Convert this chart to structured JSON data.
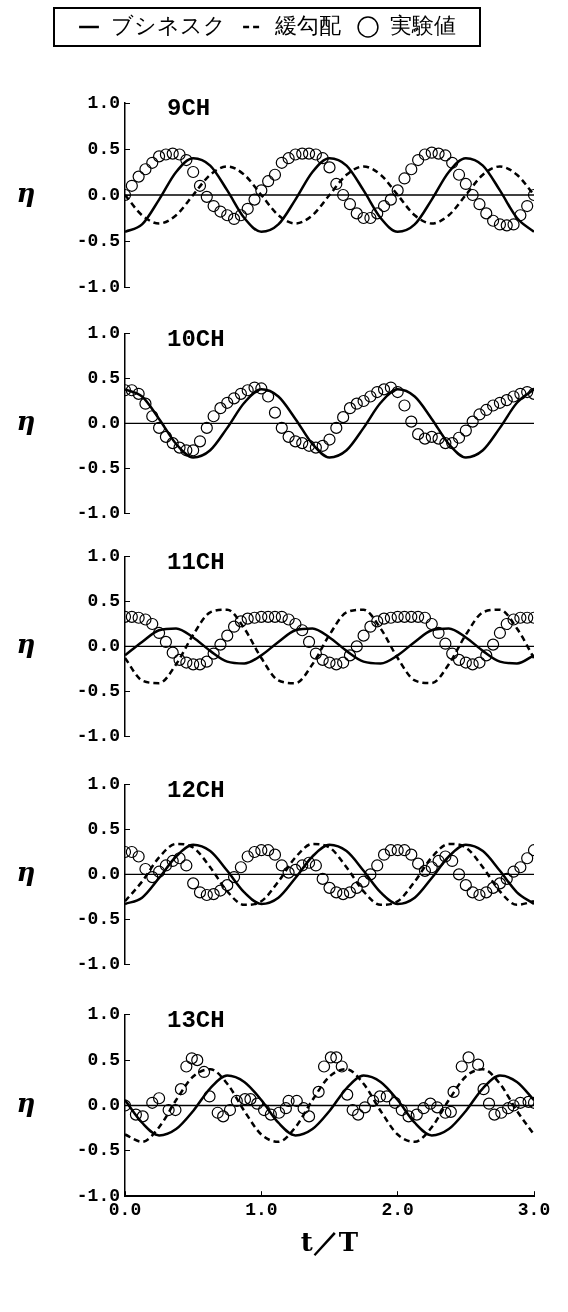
{
  "chart_data": [
    {
      "type": "line",
      "title": "9CH",
      "ylabel": "η",
      "legend": "top",
      "tick_labels": "y",
      "xlim": [
        0,
        3
      ],
      "ylim": [
        -1,
        1
      ],
      "yticks": [
        {
          "value": 1,
          "label": "1.0"
        },
        {
          "value": 0.5,
          "label": "0.5"
        },
        {
          "value": 0,
          "label": "0.0"
        },
        {
          "value": -0.5,
          "label": "-0.5"
        },
        {
          "value": -1,
          "label": "-1.0"
        }
      ],
      "ref_lines": [
        {
          "axis": "y",
          "value": 0,
          "label": null,
          "color": "#000000"
        }
      ],
      "x": [
        0,
        0.05,
        0.1,
        0.15,
        0.2,
        0.25,
        0.3,
        0.35,
        0.4,
        0.45,
        0.5,
        0.55,
        0.6,
        0.65,
        0.7,
        0.75,
        0.8,
        0.85,
        0.9,
        0.95,
        1,
        1.05,
        1.1,
        1.15,
        1.2,
        1.25,
        1.3,
        1.35,
        1.4,
        1.45,
        1.5,
        1.55,
        1.6,
        1.65,
        1.7,
        1.75,
        1.8,
        1.85,
        1.9,
        1.95,
        2,
        2.05,
        2.1,
        2.15,
        2.2,
        2.25,
        2.3,
        2.35,
        2.4,
        2.45,
        2.5,
        2.55,
        2.6,
        2.65,
        2.7,
        2.75,
        2.8,
        2.85,
        2.9,
        2.95,
        3
      ],
      "series": [
        {
          "type": "line",
          "name": "ブシネスク",
          "color": "#000000",
          "line_style": "solid",
          "marker": "none",
          "x": [
            0,
            0.125,
            0.25,
            0.375,
            0.5,
            0.625,
            0.75,
            0.875,
            1,
            1.125,
            1.25,
            1.375,
            1.5,
            1.625,
            1.75,
            1.875,
            2,
            2.125,
            2.25,
            2.375,
            2.5,
            2.625,
            2.75,
            2.875,
            3
          ],
          "values": [
            -0.4,
            -0.32,
            -0.05,
            0.25,
            0.4,
            0.32,
            0.05,
            -0.25,
            -0.4,
            -0.32,
            -0.05,
            0.25,
            0.4,
            0.32,
            0.05,
            -0.25,
            -0.4,
            -0.32,
            -0.05,
            0.25,
            0.4,
            0.32,
            0.05,
            -0.25,
            -0.4
          ]
        },
        {
          "type": "line",
          "name": "緩勾配",
          "color": "#000000",
          "line_style": "dashed",
          "marker": "none",
          "x": [
            0,
            0.125,
            0.25,
            0.375,
            0.5,
            0.625,
            0.75,
            0.875,
            1,
            1.125,
            1.25,
            1.375,
            1.5,
            1.625,
            1.75,
            1.875,
            2,
            2.125,
            2.25,
            2.375,
            2.5,
            2.625,
            2.75,
            2.875,
            3
          ],
          "values": [
            0,
            -0.22,
            -0.31,
            -0.22,
            0,
            0.22,
            0.31,
            0.22,
            0,
            -0.22,
            -0.31,
            -0.22,
            0,
            0.22,
            0.31,
            0.22,
            0,
            -0.22,
            -0.31,
            -0.22,
            0,
            0.22,
            0.31,
            0.22,
            0
          ]
        },
        {
          "type": "scatter",
          "name": "実験値",
          "color": "#000000",
          "marker": "circle",
          "values": [
            0,
            0.1,
            0.2,
            0.28,
            0.35,
            0.42,
            0.44,
            0.45,
            0.44,
            0.38,
            0.25,
            0.1,
            -0.02,
            -0.12,
            -0.18,
            -0.22,
            -0.26,
            -0.22,
            -0.15,
            -0.05,
            0.05,
            0.15,
            0.22,
            0.35,
            0.4,
            0.44,
            0.45,
            0.45,
            0.44,
            0.4,
            0.3,
            0.12,
            0,
            -0.1,
            -0.2,
            -0.25,
            -0.25,
            -0.2,
            -0.12,
            -0.05,
            0.05,
            0.18,
            0.28,
            0.38,
            0.44,
            0.46,
            0.45,
            0.43,
            0.35,
            0.22,
            0.12,
            0,
            -0.1,
            -0.2,
            -0.28,
            -0.32,
            -0.33,
            -0.32,
            -0.22,
            -0.12,
            0
          ]
        }
      ]
    },
    {
      "type": "line",
      "title": "10CH",
      "ylabel": "η",
      "tick_labels": "y",
      "xlim": [
        0,
        3
      ],
      "ylim": [
        -1,
        1
      ],
      "yticks": [
        {
          "value": 1,
          "label": "1.0"
        },
        {
          "value": 0.5,
          "label": "0.5"
        },
        {
          "value": 0,
          "label": "0.0"
        },
        {
          "value": -0.5,
          "label": "-0.5"
        },
        {
          "value": -1,
          "label": "-1.0"
        }
      ],
      "ref_lines": [
        {
          "axis": "y",
          "value": 0,
          "label": null,
          "color": "#000000"
        }
      ],
      "x": [
        0,
        0.05,
        0.1,
        0.15,
        0.2,
        0.25,
        0.3,
        0.35,
        0.4,
        0.45,
        0.5,
        0.55,
        0.6,
        0.65,
        0.7,
        0.75,
        0.8,
        0.85,
        0.9,
        0.95,
        1,
        1.05,
        1.1,
        1.15,
        1.2,
        1.25,
        1.3,
        1.35,
        1.4,
        1.45,
        1.5,
        1.55,
        1.6,
        1.65,
        1.7,
        1.75,
        1.8,
        1.85,
        1.9,
        1.95,
        2,
        2.05,
        2.1,
        2.15,
        2.2,
        2.25,
        2.3,
        2.35,
        2.4,
        2.45,
        2.5,
        2.55,
        2.6,
        2.65,
        2.7,
        2.75,
        2.8,
        2.85,
        2.9,
        2.95,
        3
      ],
      "series": [
        {
          "type": "line",
          "color": "#000000",
          "line_style": "solid",
          "marker": "none",
          "x": [
            0,
            0.125,
            0.25,
            0.375,
            0.5,
            0.625,
            0.75,
            0.875,
            1,
            1.125,
            1.25,
            1.375,
            1.5,
            1.625,
            1.75,
            1.875,
            2,
            2.125,
            2.25,
            2.375,
            2.5,
            2.625,
            2.75,
            2.875,
            3
          ],
          "values": [
            0.38,
            0.3,
            0.05,
            -0.23,
            -0.38,
            -0.3,
            -0.05,
            0.23,
            0.38,
            0.3,
            0.05,
            -0.23,
            -0.38,
            -0.3,
            -0.05,
            0.23,
            0.38,
            0.3,
            0.05,
            -0.23,
            -0.38,
            -0.3,
            -0.05,
            0.23,
            0.38
          ]
        },
        {
          "type": "scatter",
          "color": "#000000",
          "marker": "circle",
          "values": [
            0.37,
            0.37,
            0.33,
            0.22,
            0.08,
            -0.05,
            -0.15,
            -0.22,
            -0.27,
            -0.3,
            -0.3,
            -0.2,
            -0.05,
            0.08,
            0.17,
            0.23,
            0.28,
            0.33,
            0.37,
            0.4,
            0.39,
            0.3,
            0.12,
            -0.05,
            -0.15,
            -0.2,
            -0.22,
            -0.25,
            -0.27,
            -0.25,
            -0.18,
            -0.05,
            0.07,
            0.17,
            0.22,
            0.25,
            0.3,
            0.35,
            0.38,
            0.4,
            0.35,
            0.2,
            0.02,
            -0.12,
            -0.17,
            -0.15,
            -0.17,
            -0.22,
            -0.22,
            -0.16,
            -0.08,
            0.02,
            0.1,
            0.15,
            0.2,
            0.23,
            0.26,
            0.3,
            0.33,
            0.35,
            0.33
          ]
        }
      ]
    },
    {
      "type": "line",
      "title": "11CH",
      "ylabel": "η",
      "tick_labels": "y",
      "xlim": [
        0,
        3
      ],
      "ylim": [
        -1,
        1
      ],
      "yticks": [
        {
          "value": 1,
          "label": "1.0"
        },
        {
          "value": 0.5,
          "label": "0.5"
        },
        {
          "value": 0,
          "label": "0.0"
        },
        {
          "value": -0.5,
          "label": "-0.5"
        },
        {
          "value": -1,
          "label": "-1.0"
        }
      ],
      "ref_lines": [
        {
          "axis": "y",
          "value": 0,
          "label": null,
          "color": "#000000"
        }
      ],
      "x": [
        0,
        0.05,
        0.1,
        0.15,
        0.2,
        0.25,
        0.3,
        0.35,
        0.4,
        0.45,
        0.5,
        0.55,
        0.6,
        0.65,
        0.7,
        0.75,
        0.8,
        0.85,
        0.9,
        0.95,
        1,
        1.05,
        1.1,
        1.15,
        1.2,
        1.25,
        1.3,
        1.35,
        1.4,
        1.45,
        1.5,
        1.55,
        1.6,
        1.65,
        1.7,
        1.75,
        1.8,
        1.85,
        1.9,
        1.95,
        2,
        2.05,
        2.1,
        2.15,
        2.2,
        2.25,
        2.3,
        2.35,
        2.4,
        2.45,
        2.5,
        2.55,
        2.6,
        2.65,
        2.7,
        2.75,
        2.8,
        2.85,
        2.9,
        2.95,
        3
      ],
      "series": [
        {
          "type": "line",
          "color": "#000000",
          "line_style": "solid",
          "marker": "none",
          "x": [
            0,
            0.125,
            0.25,
            0.375,
            0.5,
            0.625,
            0.75,
            0.875,
            1,
            1.125,
            1.25,
            1.375,
            1.5,
            1.625,
            1.75,
            1.875,
            2,
            2.125,
            2.25,
            2.375,
            2.5,
            2.625,
            2.75,
            2.875,
            3
          ],
          "values": [
            -0.1,
            0.05,
            0.18,
            0.2,
            0.1,
            -0.05,
            -0.17,
            -0.19,
            -0.1,
            0.05,
            0.18,
            0.2,
            0.1,
            -0.05,
            -0.17,
            -0.19,
            -0.1,
            0.05,
            0.18,
            0.2,
            0.1,
            -0.05,
            -0.17,
            -0.19,
            -0.1
          ]
        },
        {
          "type": "line",
          "color": "#000000",
          "line_style": "dashed",
          "marker": "none",
          "x": [
            0,
            0.125,
            0.25,
            0.375,
            0.5,
            0.625,
            0.75,
            0.875,
            1,
            1.125,
            1.25,
            1.375,
            1.5,
            1.625,
            1.75,
            1.875,
            2,
            2.125,
            2.25,
            2.375,
            2.5,
            2.625,
            2.75,
            2.875,
            3
          ],
          "values": [
            -0.13,
            -0.38,
            -0.41,
            -0.2,
            0.13,
            0.38,
            0.41,
            0.2,
            -0.13,
            -0.38,
            -0.41,
            -0.2,
            0.13,
            0.38,
            0.41,
            0.2,
            -0.13,
            -0.38,
            -0.41,
            -0.2,
            0.13,
            0.38,
            0.41,
            0.2,
            -0.13
          ]
        },
        {
          "type": "scatter",
          "color": "#000000",
          "marker": "circle",
          "values": [
            0.33,
            0.33,
            0.32,
            0.3,
            0.25,
            0.15,
            0.05,
            -0.07,
            -0.15,
            -0.18,
            -0.2,
            -0.2,
            -0.17,
            -0.08,
            0.02,
            0.12,
            0.22,
            0.28,
            0.31,
            0.32,
            0.33,
            0.33,
            0.33,
            0.33,
            0.3,
            0.25,
            0.18,
            0.05,
            -0.08,
            -0.15,
            -0.18,
            -0.2,
            -0.18,
            -0.1,
            0,
            0.12,
            0.22,
            0.28,
            0.31,
            0.32,
            0.33,
            0.33,
            0.33,
            0.33,
            0.32,
            0.25,
            0.15,
            0.03,
            -0.08,
            -0.15,
            -0.18,
            -0.2,
            -0.18,
            -0.1,
            0.02,
            0.15,
            0.25,
            0.3,
            0.32,
            0.32,
            0.32
          ]
        }
      ]
    },
    {
      "type": "line",
      "title": "12CH",
      "ylabel": "η",
      "tick_labels": "y",
      "xlim": [
        0,
        3
      ],
      "ylim": [
        -1,
        1
      ],
      "yticks": [
        {
          "value": 1,
          "label": "1.0"
        },
        {
          "value": 0.5,
          "label": "0.5"
        },
        {
          "value": 0,
          "label": "0.0"
        },
        {
          "value": -0.5,
          "label": "-0.5"
        },
        {
          "value": -1,
          "label": "-1.0"
        }
      ],
      "ref_lines": [
        {
          "axis": "y",
          "value": 0,
          "label": null,
          "color": "#000000"
        }
      ],
      "x": [
        0,
        0.05,
        0.1,
        0.15,
        0.2,
        0.25,
        0.3,
        0.35,
        0.4,
        0.45,
        0.5,
        0.55,
        0.6,
        0.65,
        0.7,
        0.75,
        0.8,
        0.85,
        0.9,
        0.95,
        1,
        1.05,
        1.1,
        1.15,
        1.2,
        1.25,
        1.3,
        1.35,
        1.4,
        1.45,
        1.5,
        1.55,
        1.6,
        1.65,
        1.7,
        1.75,
        1.8,
        1.85,
        1.9,
        1.95,
        2,
        2.05,
        2.1,
        2.15,
        2.2,
        2.25,
        2.3,
        2.35,
        2.4,
        2.45,
        2.5,
        2.55,
        2.6,
        2.65,
        2.7,
        2.75,
        2.8,
        2.85,
        2.9,
        2.95,
        3
      ],
      "series": [
        {
          "type": "line",
          "color": "#000000",
          "line_style": "solid",
          "marker": "none",
          "x": [
            0,
            0.125,
            0.25,
            0.375,
            0.5,
            0.625,
            0.75,
            0.875,
            1,
            1.125,
            1.25,
            1.375,
            1.5,
            1.625,
            1.75,
            1.875,
            2,
            2.125,
            2.25,
            2.375,
            2.5,
            2.625,
            2.75,
            2.875,
            3
          ],
          "values": [
            -0.33,
            -0.26,
            -0.04,
            0.2,
            0.33,
            0.26,
            0.04,
            -0.2,
            -0.33,
            -0.26,
            -0.04,
            0.2,
            0.33,
            0.26,
            0.04,
            -0.2,
            -0.33,
            -0.26,
            -0.04,
            0.2,
            0.33,
            0.26,
            0.04,
            -0.2,
            -0.33
          ]
        },
        {
          "type": "line",
          "color": "#000000",
          "line_style": "dashed",
          "marker": "none",
          "x": [
            0,
            0.125,
            0.25,
            0.375,
            0.5,
            0.625,
            0.75,
            0.875,
            1,
            1.125,
            1.25,
            1.375,
            1.5,
            1.625,
            1.75,
            1.875,
            2,
            2.125,
            2.25,
            2.375,
            2.5,
            2.625,
            2.75,
            2.875,
            3
          ],
          "values": [
            -0.3,
            -0.08,
            0.19,
            0.34,
            0.3,
            0.08,
            -0.19,
            -0.34,
            -0.3,
            -0.08,
            0.19,
            0.34,
            0.3,
            0.08,
            -0.19,
            -0.34,
            -0.3,
            -0.08,
            0.19,
            0.34,
            0.3,
            0.08,
            -0.19,
            -0.34,
            -0.3
          ]
        },
        {
          "type": "scatter",
          "color": "#000000",
          "marker": "circle",
          "values": [
            0.25,
            0.25,
            0.2,
            0.06,
            -0.03,
            0.03,
            0.1,
            0.15,
            0.18,
            0.1,
            -0.1,
            -0.2,
            -0.23,
            -0.22,
            -0.18,
            -0.12,
            -0.03,
            0.08,
            0.2,
            0.25,
            0.27,
            0.27,
            0.22,
            0.1,
            0.02,
            0.05,
            0.1,
            0.13,
            0.1,
            -0.05,
            -0.15,
            -0.2,
            -0.22,
            -0.2,
            -0.15,
            -0.08,
            0,
            0.1,
            0.22,
            0.27,
            0.27,
            0.27,
            0.22,
            0.12,
            0.04,
            0.08,
            0.15,
            0.2,
            0.15,
            0,
            -0.12,
            -0.2,
            -0.23,
            -0.2,
            -0.15,
            -0.1,
            -0.05,
            0.03,
            0.08,
            0.18,
            0.27
          ]
        }
      ]
    },
    {
      "type": "line",
      "title": "13CH",
      "ylabel": "η",
      "xlabel": "t／T",
      "xlim": [
        0,
        3
      ],
      "ylim": [
        -1,
        1
      ],
      "xticks": [
        {
          "value": 0,
          "label": "0.0"
        },
        {
          "value": 1,
          "label": "1.0"
        },
        {
          "value": 2,
          "label": "2.0"
        },
        {
          "value": 3,
          "label": "3.0"
        }
      ],
      "yticks": [
        {
          "value": 1,
          "label": "1.0"
        },
        {
          "value": 0.5,
          "label": "0.5"
        },
        {
          "value": 0,
          "label": "0.0"
        },
        {
          "value": -0.5,
          "label": "-0.5"
        },
        {
          "value": -1,
          "label": "-1.0"
        }
      ],
      "ref_lines": [
        {
          "axis": "y",
          "value": 0,
          "label": null,
          "color": "#000000"
        }
      ],
      "series": [
        {
          "type": "line",
          "color": "#000000",
          "line_style": "solid",
          "marker": "none",
          "x": [
            0,
            0.125,
            0.25,
            0.375,
            0.5,
            0.625,
            0.75,
            0.875,
            1,
            1.125,
            1.25,
            1.375,
            1.5,
            1.625,
            1.75,
            1.875,
            2,
            2.125,
            2.25,
            2.375,
            2.5,
            2.625,
            2.75,
            2.875,
            3
          ],
          "values": [
            0.06,
            -0.19,
            -0.33,
            -0.26,
            -0.06,
            0.19,
            0.33,
            0.26,
            0.06,
            -0.19,
            -0.33,
            -0.26,
            -0.06,
            0.19,
            0.33,
            0.26,
            0.06,
            -0.19,
            -0.33,
            -0.26,
            -0.06,
            0.19,
            0.33,
            0.26,
            0.06
          ]
        },
        {
          "type": "line",
          "color": "#000000",
          "line_style": "dashed",
          "marker": "none",
          "x": [
            0,
            0.125,
            0.25,
            0.375,
            0.5,
            0.625,
            0.75,
            0.875,
            1,
            1.125,
            1.25,
            1.375,
            1.5,
            1.625,
            1.75,
            1.875,
            2,
            2.125,
            2.25,
            2.375,
            2.5,
            2.625,
            2.75,
            2.875,
            3
          ],
          "values": [
            -0.32,
            -0.4,
            -0.24,
            0.06,
            0.32,
            0.4,
            0.24,
            -0.06,
            -0.32,
            -0.4,
            -0.24,
            0.06,
            0.32,
            0.4,
            0.24,
            -0.06,
            -0.32,
            -0.4,
            -0.24,
            0.06,
            0.32,
            0.4,
            0.24,
            -0.06,
            -0.32
          ]
        },
        {
          "type": "scatter",
          "color": "#000000",
          "marker": "circle",
          "x": [
            0,
            0.08,
            0.13,
            0.2,
            0.25,
            0.32,
            0.37,
            0.41,
            0.45,
            0.49,
            0.53,
            0.58,
            0.62,
            0.68,
            0.72,
            0.77,
            0.82,
            0.88,
            0.92,
            0.97,
            1.02,
            1.07,
            1.13,
            1.18,
            1.2,
            1.26,
            1.31,
            1.35,
            1.42,
            1.46,
            1.51,
            1.55,
            1.59,
            1.63,
            1.67,
            1.71,
            1.76,
            1.82,
            1.87,
            1.92,
            1.98,
            2.03,
            2.08,
            2.14,
            2.19,
            2.24,
            2.29,
            2.35,
            2.39,
            2.41,
            2.47,
            2.52,
            2.59,
            2.63,
            2.67,
            2.71,
            2.76,
            2.81,
            2.85,
            2.9,
            2.96,
            3
          ],
          "values": [
            0,
            -0.1,
            -0.12,
            0.03,
            0.08,
            -0.05,
            -0.05,
            0.18,
            0.43,
            0.52,
            0.5,
            0.37,
            0.1,
            -0.08,
            -0.12,
            -0.05,
            0.05,
            0.07,
            0.07,
            0.02,
            -0.05,
            -0.1,
            -0.08,
            -0.03,
            0.05,
            0.05,
            -0.03,
            -0.12,
            0.15,
            0.43,
            0.53,
            0.53,
            0.43,
            0.12,
            -0.05,
            -0.1,
            -0.02,
            0.05,
            0.1,
            0.1,
            0.03,
            -0.05,
            -0.12,
            -0.1,
            -0.03,
            0.02,
            -0.02,
            -0.08,
            -0.07,
            0.15,
            0.43,
            0.53,
            0.45,
            0.18,
            0.02,
            -0.1,
            -0.08,
            -0.03,
            0,
            0.03,
            0.04,
            0.03
          ]
        }
      ]
    }
  ]
}
